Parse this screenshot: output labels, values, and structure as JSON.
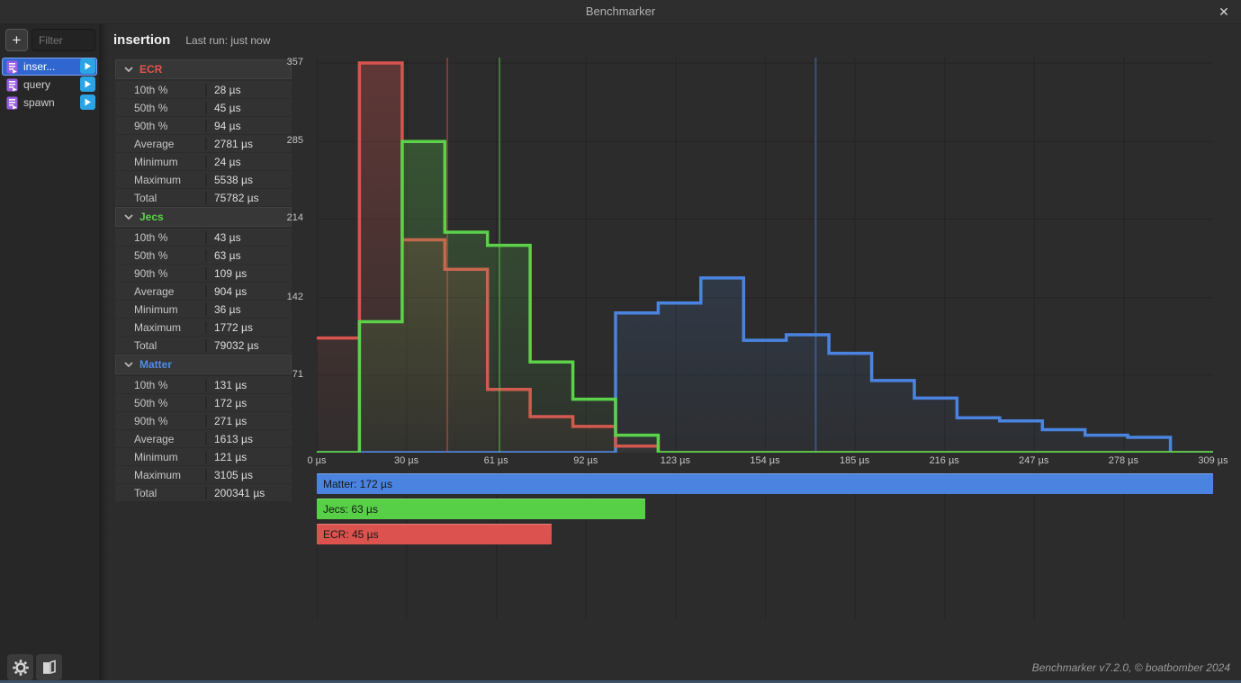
{
  "window": {
    "title": "Benchmarker",
    "close_glyph": "✕"
  },
  "sidebar": {
    "add_label": "+",
    "filter_placeholder": "Filter",
    "items": [
      {
        "label": "inser...",
        "selected": true
      },
      {
        "label": "query",
        "selected": false
      },
      {
        "label": "spawn",
        "selected": false
      }
    ]
  },
  "header": {
    "title": "insertion",
    "last_run": "Last run: just now"
  },
  "stats": {
    "row_labels": [
      "10th %",
      "50th %",
      "90th %",
      "Average",
      "Minimum",
      "Maximum",
      "Total"
    ],
    "sections": [
      {
        "name": "ECR",
        "color": "#e0554f",
        "values": [
          "28 µs",
          "45 µs",
          "94 µs",
          "2781 µs",
          "24 µs",
          "5538 µs",
          "75782 µs"
        ]
      },
      {
        "name": "Jecs",
        "color": "#5bd24a",
        "values": [
          "43 µs",
          "63 µs",
          "109 µs",
          "904 µs",
          "36 µs",
          "1772 µs",
          "79032 µs"
        ]
      },
      {
        "name": "Matter",
        "color": "#4f8be4",
        "values": [
          "131 µs",
          "172 µs",
          "271 µs",
          "1613 µs",
          "121 µs",
          "3105 µs",
          "200341 µs"
        ]
      }
    ]
  },
  "chart_data": {
    "type": "step-histogram",
    "xlim": [
      0,
      309
    ],
    "ylim": [
      0,
      357
    ],
    "bin_start": 0,
    "bin_width": 14.714,
    "grid": true,
    "y_ticks": [
      357,
      285,
      214,
      142,
      71
    ],
    "x_ticks": [
      {
        "value": 0,
        "label": "0 µs"
      },
      {
        "value": 30.9,
        "label": "30 µs"
      },
      {
        "value": 61.8,
        "label": "61 µs"
      },
      {
        "value": 92.7,
        "label": "92 µs"
      },
      {
        "value": 123.6,
        "label": "123 µs"
      },
      {
        "value": 154.5,
        "label": "154 µs"
      },
      {
        "value": 185.4,
        "label": "185 µs"
      },
      {
        "value": 216.3,
        "label": "216 µs"
      },
      {
        "value": 247.2,
        "label": "247 µs"
      },
      {
        "value": 278.1,
        "label": "278 µs"
      },
      {
        "value": 309,
        "label": "309 µs"
      }
    ],
    "series": [
      {
        "name": "Matter",
        "color": "#4a84e0",
        "median": 172,
        "counts": [
          0,
          0,
          0,
          0,
          0,
          0,
          0,
          128,
          137,
          160,
          103,
          108,
          91,
          66,
          50,
          32,
          29,
          21,
          16,
          14,
          0
        ]
      },
      {
        "name": "ECR",
        "color": "#d9534f",
        "median": 45,
        "counts": [
          105,
          357,
          195,
          168,
          58,
          33,
          24,
          6,
          0,
          0,
          0,
          0,
          0,
          0,
          0,
          0,
          0,
          0,
          0,
          0,
          0
        ]
      },
      {
        "name": "Jecs",
        "color": "#5bd24a",
        "median": 63,
        "counts": [
          0,
          120,
          285,
          202,
          190,
          83,
          49,
          16,
          0,
          0,
          0,
          0,
          0,
          0,
          0,
          0,
          0,
          0,
          0,
          0,
          0
        ]
      }
    ]
  },
  "median_bars": [
    {
      "name": "Matter",
      "label": "Matter: 172 µs",
      "value": 172,
      "color": "#4a84e0"
    },
    {
      "name": "Jecs",
      "label": "Jecs: 63 µs",
      "value": 63,
      "color": "#57cf47"
    },
    {
      "name": "ECR",
      "label": "ECR: 45 µs",
      "value": 45,
      "color": "#dc524e"
    }
  ],
  "footer": {
    "version": "Benchmarker v7.2.0, © boatbomber 2024"
  }
}
